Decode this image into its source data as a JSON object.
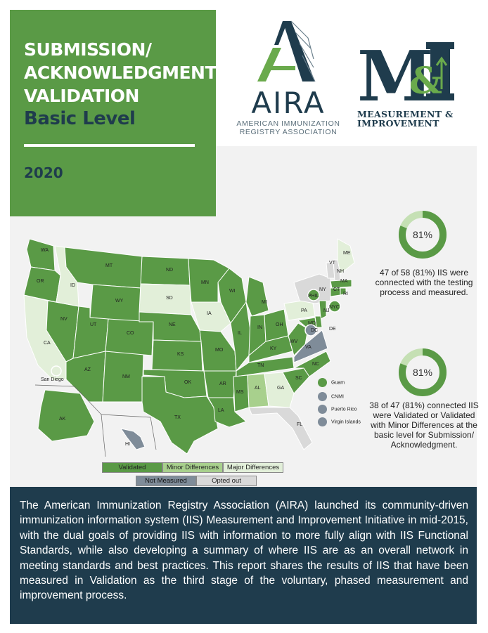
{
  "header": {
    "title_lines": [
      "SUBMISSION/",
      "ACKNOWLEDGMENT",
      "VALIDATION"
    ],
    "subtitle": "Basic Level",
    "year": "2020"
  },
  "logos": {
    "aira_word": "AIRA",
    "aira_sub_1": "AMERICAN IMMUNIZATION",
    "aira_sub_2": "REGISTRY ASSOCIATION",
    "mi_letters": "M&I",
    "mi_sub_1": "MEASUREMENT &",
    "mi_sub_2": "IMPROVEMENT"
  },
  "stats": [
    {
      "percent_label": "81%",
      "percent_value": 81,
      "text": "47 of 58 (81%) IIS were connected with the testing process and measured."
    },
    {
      "percent_label": "81%",
      "percent_value": 81,
      "text": "38 of 47 (81%) connected IIS were Validated or Validated with Minor Differences at the basic level for Submission/ Acknowledgment."
    }
  ],
  "map": {
    "state_labels": [
      "WA",
      "OR",
      "CA",
      "NV",
      "ID",
      "MT",
      "WY",
      "UT",
      "AZ",
      "NM",
      "CO",
      "ND",
      "SD",
      "NE",
      "KS",
      "OK",
      "TX",
      "MN",
      "IA",
      "MO",
      "AR",
      "LA",
      "WI",
      "IL",
      "MI",
      "IN",
      "OH",
      "KY",
      "TN",
      "MS",
      "AL",
      "GA",
      "FL",
      "SC",
      "NC",
      "VA",
      "WV",
      "PA",
      "NY",
      "VT",
      "NH",
      "ME",
      "MA",
      "CT",
      "RI",
      "NJ",
      "DE",
      "MD",
      "DC",
      "AK",
      "HI"
    ],
    "city_labels": [
      "San Diego",
      "PHIL",
      "NYC"
    ],
    "territories": [
      {
        "name": "Guam",
        "status": "Validated"
      },
      {
        "name": "CNMI",
        "status": "Not Measured"
      },
      {
        "name": "Puerto Rico",
        "status": "Not Measured"
      },
      {
        "name": "Virgin Islands",
        "status": "Not Measured"
      }
    ]
  },
  "legend": [
    {
      "label": "Validated",
      "color": "#5a9a46"
    },
    {
      "label": "Minor Differences",
      "color": "#a8d08d"
    },
    {
      "label": "Major Differences",
      "color": "#e2efd9"
    },
    {
      "label": "Not Measured",
      "color": "#7f8c99"
    },
    {
      "label": "Opted out",
      "color": "#d9d9d9"
    }
  ],
  "colors": {
    "primary_green": "#5a9a46",
    "navy": "#1f3c4d",
    "light_green": "#c5e0b4"
  },
  "footer_text": "The American Immunization Registry Association (AIRA) launched its community-driven immunization information system (IIS) Measurement and Improvement Initiative in mid-2015, with the dual goals of providing IIS with information to more fully align with IIS Functional Standards, while also developing a summary of where IIS are as an overall network in meeting standards and best practices. This report shares the results of IIS that have been measured in Validation as the third stage of the voluntary, phased measurement and improvement process."
}
